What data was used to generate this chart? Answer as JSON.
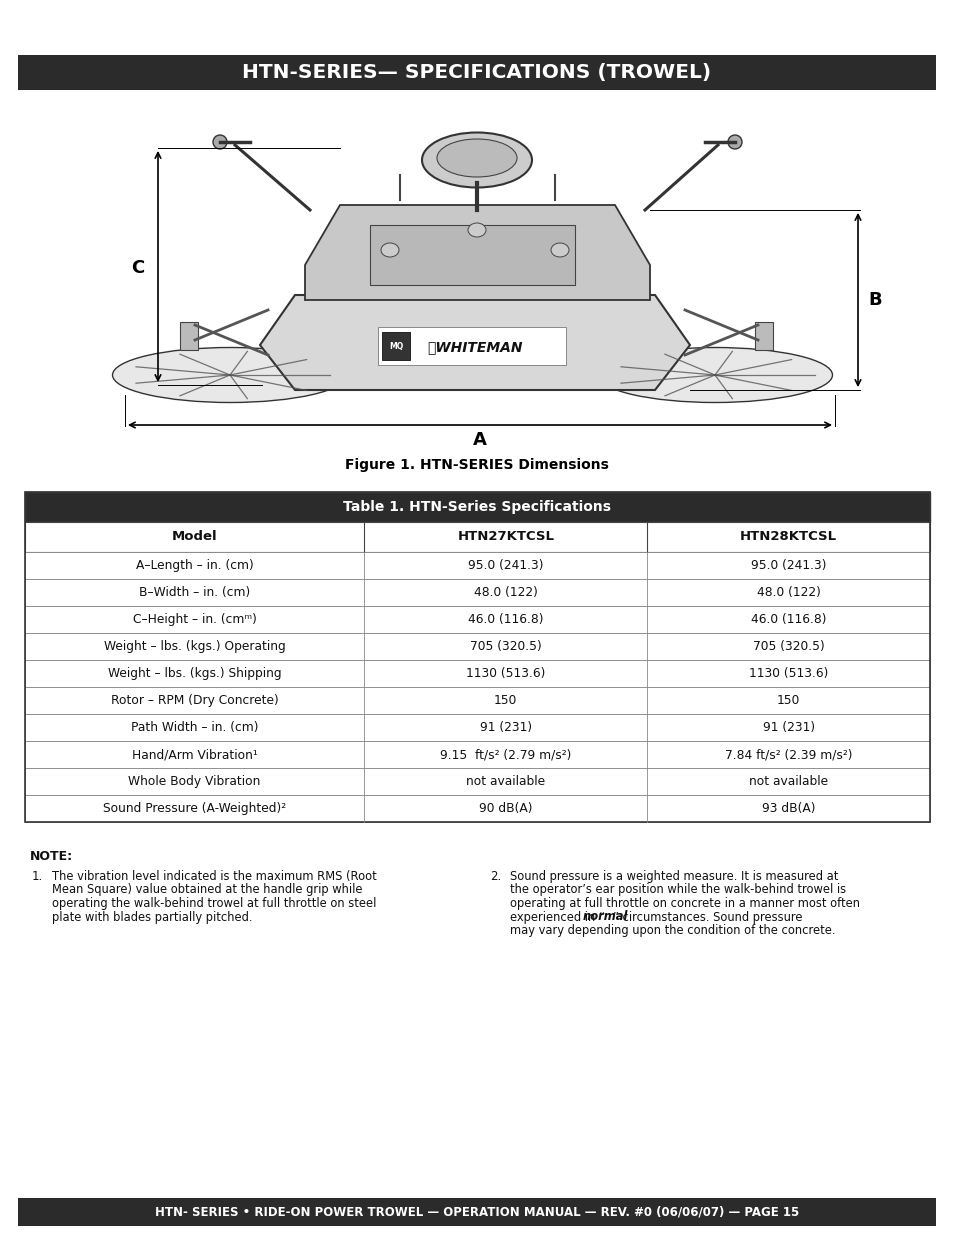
{
  "title": "HTN-SERIES— SPECIFICATIONS (TROWEL)",
  "title_bg": "#2b2b2b",
  "title_fg": "#ffffff",
  "figure_caption": "Figure 1. HTN-SERIES Dimensions",
  "table_title": "Table 1. HTN-Series Specifications",
  "table_header_bg": "#2b2b2b",
  "table_header_fg": "#ffffff",
  "table_col_headers": [
    "Model",
    "HTN27KTCSL",
    "HTN28KTCSL"
  ],
  "table_rows": [
    [
      "A–Length – in. (cm)",
      "95.0 (241.3)",
      "95.0 (241.3)"
    ],
    [
      "B–Width – in. (cm)",
      "48.0 (122)",
      "48.0 (122)"
    ],
    [
      "C–Height – in. (cmᵐ)",
      "46.0 (116.8)",
      "46.0 (116.8)"
    ],
    [
      "Weight – lbs. (kgs.) Operating",
      "705 (320.5)",
      "705 (320.5)"
    ],
    [
      "Weight – lbs. (kgs.) Shipping",
      "1130 (513.6)",
      "1130 (513.6)"
    ],
    [
      "Rotor – RPM (Dry Concrete)",
      "150",
      "150"
    ],
    [
      "Path Width – in. (cm)",
      "91 (231)",
      "91 (231)"
    ],
    [
      "Hand/Arm Vibration¹",
      "9.15  ft/s² (2.79 m/s²)",
      "7.84 ft/s² (2.39 m/s²)"
    ],
    [
      "Whole Body Vibration",
      "not available",
      "not available"
    ],
    [
      "Sound Pressure (A-Weighted)²",
      "90 dB(A)",
      "93 dB(A)"
    ]
  ],
  "note_title": "NOTE:",
  "note1_num": "1.",
  "note1_lines": [
    "The vibration level indicated is the maximum RMS (Root",
    "Mean Square) value obtained at the handle grip while",
    "operating the walk-behind trowel at full throttle on steel",
    "plate with blades partially pitched."
  ],
  "note2_num": "2.",
  "note2_lines": [
    "Sound pressure is a weighted measure. It is measured at",
    "the operator’s ear position while the walk-behind trowel is",
    "operating at full throttle on concrete in a manner most often",
    "experienced in “normal” circumstances. Sound pressure",
    "may vary depending upon the condition of the concrete."
  ],
  "footer_text": "HTN- SERIES • RIDE-ON POWER TROWEL — OPERATION MANUAL — REV. #0 (06/06/07) — PAGE 15",
  "footer_bg": "#2b2b2b",
  "footer_fg": "#ffffff",
  "bg_color": "#ffffff"
}
